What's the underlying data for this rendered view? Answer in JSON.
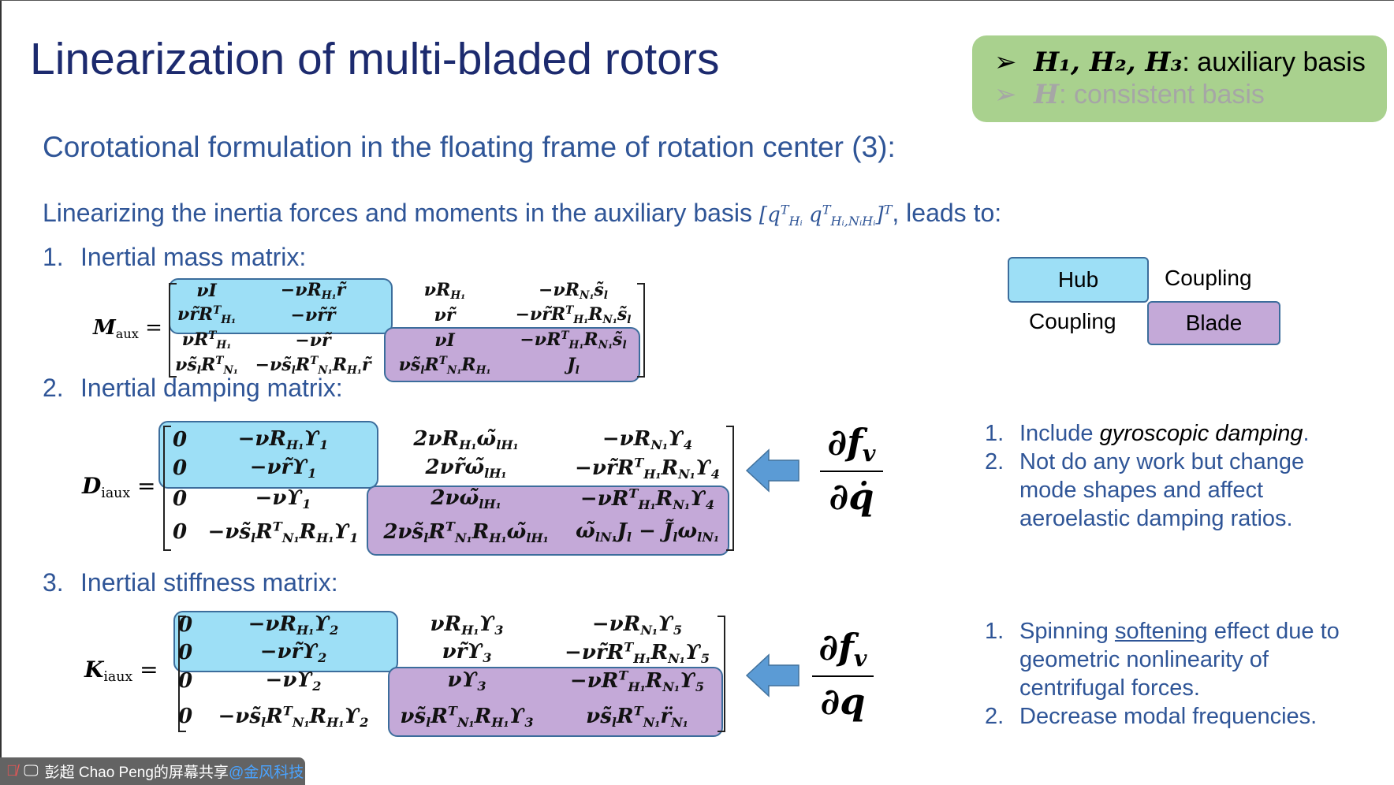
{
  "slide": {
    "title": "Linearization of multi-bladed rotors",
    "callout": {
      "bg_color": "#a9d18e",
      "items": [
        {
          "bullet": "➢",
          "symbol": "H₁, H₂, H₃",
          "text": ": auxiliary basis",
          "color": "#000000"
        },
        {
          "bullet": "➢",
          "symbol": "H",
          "text": ": consistent basis",
          "color": "#a6a6a6"
        }
      ]
    },
    "subtitle": "Corotational formulation in the floating frame of rotation center (3):",
    "linearizing": {
      "before": "Linearizing the inertia forces and moments in the auxiliary basis ",
      "basis": [
        "[",
        "q",
        "^T",
        "_Hᵢ",
        "   q",
        "^T",
        "_Hᵢ,NᵢHᵢ",
        "]",
        "^T"
      ],
      "after": ", leads to:"
    },
    "sections": [
      {
        "num": "1.",
        "label": "Inertial mass matrix:"
      },
      {
        "num": "2.",
        "label": "Inertial damping matrix:"
      },
      {
        "num": "3.",
        "label": "Inertial stiffness matrix:"
      }
    ],
    "legend": {
      "hub": "Hub",
      "blade": "Blade",
      "coupling_top": "Coupling",
      "coupling_bottom": "Coupling",
      "hub_color": "#9ddff6",
      "blade_color": "#c4a9d8"
    },
    "matrices": {
      "M": {
        "label": [
          "M",
          "_aux",
          " ="
        ],
        "rows": [
          [
            [
              "νI"
            ],
            [
              "−νR",
              "_H₁",
              "r̃"
            ],
            [
              "νR",
              "_H₁"
            ],
            [
              "−νR",
              "_N₁",
              "s̃",
              "_l"
            ]
          ],
          [
            [
              "νr̃R",
              "^T",
              "_H₁"
            ],
            [
              "−νr̃r̃"
            ],
            [
              "νr̃"
            ],
            [
              "−νr̃R",
              "^T",
              "_H₁",
              "R",
              "_N₁",
              "s̃",
              "_l"
            ]
          ],
          [
            [
              "νR",
              "^T",
              "_H₁"
            ],
            [
              "−νr̃"
            ],
            [
              "νI"
            ],
            [
              "−νR",
              "^T",
              "_H₁",
              "R",
              "_N₁",
              "s̃",
              "_l"
            ]
          ],
          [
            [
              "νs̃",
              "_l",
              "R",
              "^T",
              "_N₁"
            ],
            [
              "−νs̃",
              "_l",
              "R",
              "^T",
              "_N₁",
              "R",
              "_H₁",
              "r̃"
            ],
            [
              "νs̃",
              "_l",
              "R",
              "^T",
              "_N₁",
              "R",
              "_H₁"
            ],
            [
              "J",
              "_l"
            ]
          ]
        ]
      },
      "D": {
        "label": [
          "D",
          "_iaux",
          " ="
        ],
        "rows": [
          [
            [
              "0"
            ],
            [
              "−νR",
              "_H₁",
              "ϒ",
              "_1"
            ],
            [
              "2νR",
              "_H₁",
              "ω̃",
              "_lH₁"
            ],
            [
              "−νR",
              "_N₁",
              "ϒ",
              "_4"
            ]
          ],
          [
            [
              "0"
            ],
            [
              "−νr̃ϒ",
              "_1"
            ],
            [
              "2νr̃ω̃",
              "_lH₁"
            ],
            [
              "−νr̃R",
              "^T",
              "_H₁",
              "R",
              "_N₁",
              "ϒ",
              "_4"
            ]
          ],
          [
            [
              "0"
            ],
            [
              "−νϒ",
              "_1"
            ],
            [
              "2νω̃",
              "_lH₁"
            ],
            [
              "−νR",
              "^T",
              "_H₁",
              "R",
              "_N₁",
              "ϒ",
              "_4"
            ]
          ],
          [
            [
              "0"
            ],
            [
              "−νs̃",
              "_l",
              "R",
              "^T",
              "_N₁",
              "R",
              "_H₁",
              "ϒ",
              "_1"
            ],
            [
              "2νs̃",
              "_l",
              "R",
              "^T",
              "_N₁",
              "R",
              "_H₁",
              "ω̃",
              "_lH₁"
            ],
            [
              "ω̃",
              "_lN₁",
              "J",
              "_l",
              " − J̃",
              "_l",
              "ω",
              "_lN₁"
            ]
          ]
        ]
      },
      "K": {
        "label": [
          "K",
          "_iaux",
          " ="
        ],
        "rows": [
          [
            [
              "0"
            ],
            [
              "−νR",
              "_H₁",
              "ϒ",
              "_2"
            ],
            [
              "νR",
              "_H₁",
              "ϒ",
              "_3"
            ],
            [
              "−νR",
              "_N₁",
              "ϒ",
              "_5"
            ]
          ],
          [
            [
              "0"
            ],
            [
              "−νr̃ϒ",
              "_2"
            ],
            [
              "νr̃ϒ",
              "_3"
            ],
            [
              "−νr̃R",
              "^T",
              "_H₁",
              "R",
              "_N₁",
              "ϒ",
              "_5"
            ]
          ],
          [
            [
              "0"
            ],
            [
              "−νϒ",
              "_2"
            ],
            [
              "νϒ",
              "_3"
            ],
            [
              "−νR",
              "^T",
              "_H₁",
              "R",
              "_N₁",
              "ϒ",
              "_5"
            ]
          ],
          [
            [
              "0"
            ],
            [
              "−νs̃",
              "_l",
              "R",
              "^T",
              "_N₁",
              "R",
              "_H₁",
              "ϒ",
              "_2"
            ],
            [
              "νs̃",
              "_l",
              "R",
              "^T",
              "_N₁",
              "R",
              "_H₁",
              "ϒ",
              "_3"
            ],
            [
              "νs̃",
              "_l",
              "R",
              "^T",
              "_N₁",
              "r̈",
              "_N₁"
            ]
          ]
        ]
      }
    },
    "derivatives": {
      "damping": {
        "num": [
          "∂f",
          "_v"
        ],
        "den": [
          "∂q̇"
        ]
      },
      "stiffness": {
        "num": [
          "∂f",
          "_v"
        ],
        "den": [
          "∂q"
        ]
      }
    },
    "arrow_color": "#5b9bd5",
    "damping_notes": [
      {
        "n": "1.",
        "pre": "Include ",
        "emph": "gyroscopic damping",
        "post": "."
      },
      {
        "n": "2.",
        "pre": "Not do any work but change mode shapes and affect aeroelastic damping ratios.",
        "emph": "",
        "post": ""
      }
    ],
    "stiffness_notes": [
      {
        "n": "1.",
        "pre": "Spinning ",
        "emph": "softening",
        "post": " effect due to geometric nonlinearity of centrifugal forces."
      },
      {
        "n": "2.",
        "pre": "Decrease modal frequencies.",
        "emph": "",
        "post": ""
      }
    ],
    "text_color": "#2f5597",
    "title_color": "#1c2a6e"
  },
  "share_bar": {
    "text": "彭超 Chao Peng的屏幕共享",
    "org": "@金风科技"
  }
}
